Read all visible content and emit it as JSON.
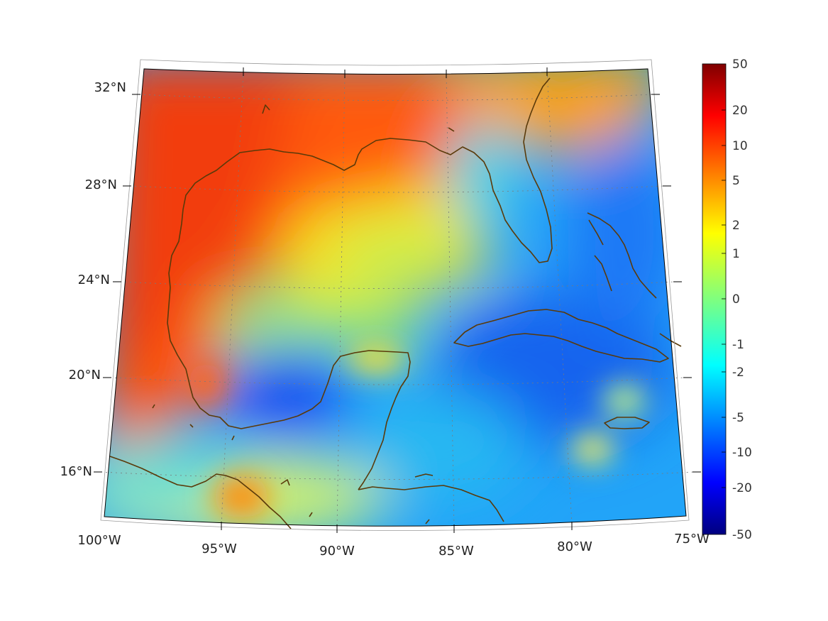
{
  "map": {
    "projection": "conic",
    "extent": {
      "lon_min": -100,
      "lon_max": -75,
      "lat_min": 14,
      "lat_max": 33
    },
    "gridlines": "dotted",
    "coastline_color": "#5a3a0a",
    "longitude_labels": [
      "100°W",
      "95°W",
      "90°W",
      "85°W",
      "80°W",
      "75°W"
    ],
    "latitude_labels": [
      "32°N",
      "28°N",
      "24°N",
      "20°N",
      "16°N"
    ],
    "field_description": "anomaly field, red = positive, blue = negative"
  },
  "colorbar": {
    "colormap": "jet",
    "tick_labels": [
      "50",
      "20",
      "10",
      "5",
      "2",
      "1",
      "0",
      "-1",
      "-2",
      "-5",
      "-10",
      "-20",
      "-50"
    ],
    "colors": [
      "#7f0000",
      "#ff0000",
      "#ff8000",
      "#ffff00",
      "#00ffff",
      "#0080ff",
      "#0000ff",
      "#00007f"
    ]
  }
}
